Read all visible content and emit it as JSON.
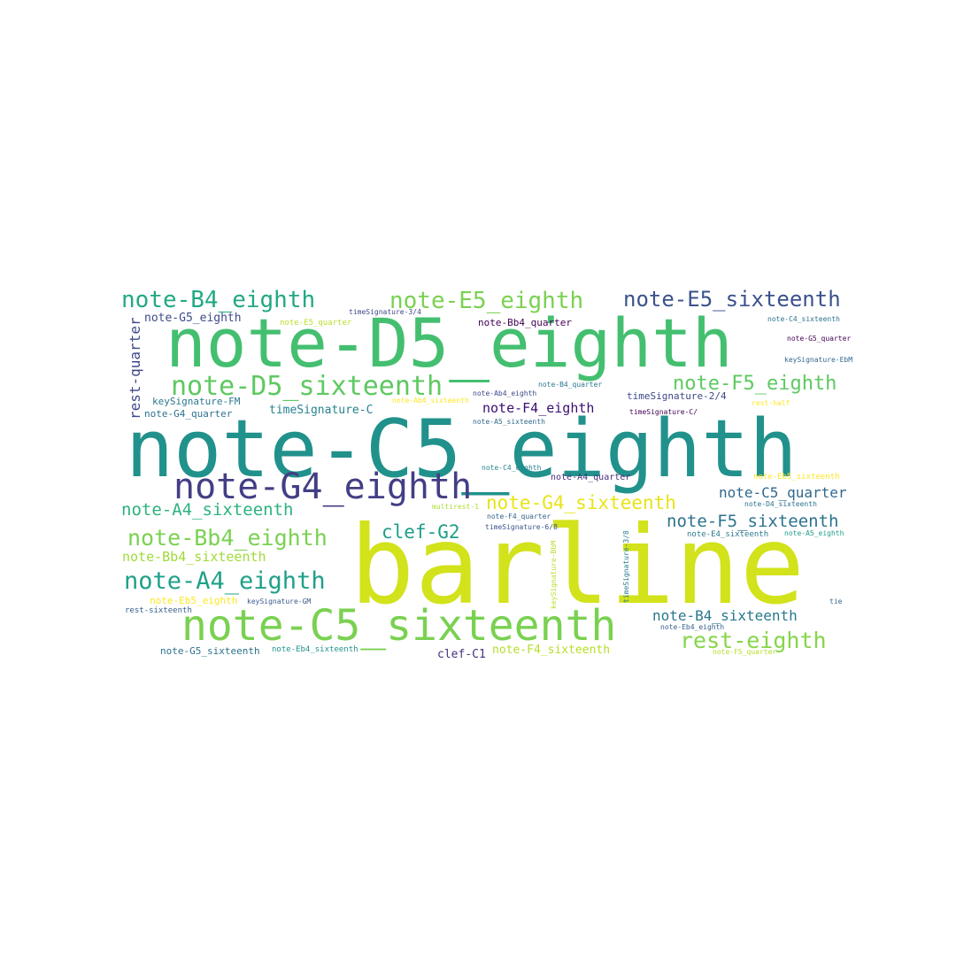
{
  "words": [
    {
      "text": "barline",
      "color": "#d2e21b"
    },
    {
      "text": "note-C5_eighth",
      "color": "#21918c"
    },
    {
      "text": "note-D5_eighth",
      "color": "#44bf70"
    },
    {
      "text": "note-C5_sixteenth",
      "color": "#7ad151"
    },
    {
      "text": "note-G4_eighth",
      "color": "#433e85"
    },
    {
      "text": "note-D5_sixteenth",
      "color": "#5ec962"
    },
    {
      "text": "note-B4_eighth",
      "color": "#22a884"
    },
    {
      "text": "note-E5_eighth",
      "color": "#7ad151"
    },
    {
      "text": "note-E5_sixteenth",
      "color": "#3b528b"
    },
    {
      "text": "note-A4_eighth",
      "color": "#1fa088"
    },
    {
      "text": "note-Bb4_eighth",
      "color": "#7ad151"
    },
    {
      "text": "note-F5_eighth",
      "color": "#5ec962"
    },
    {
      "text": "note-G4_sixteenth",
      "color": "#e8e419"
    },
    {
      "text": "rest-eighth",
      "color": "#86d549"
    },
    {
      "text": "note-A4_sixteenth",
      "color": "#2db27d"
    },
    {
      "text": "note-F5_sixteenth",
      "color": "#2c728e"
    },
    {
      "text": "clef-G2",
      "color": "#1f9e89"
    },
    {
      "text": "note-B4_sixteenth",
      "color": "#2a788e"
    },
    {
      "text": "note-C5_quarter",
      "color": "#31688e"
    },
    {
      "text": "note-Bb4_sixteenth",
      "color": "#9fda3a"
    },
    {
      "text": "rest-quarter",
      "color": "#3e4989"
    },
    {
      "text": "note-F4_eighth",
      "color": "#3b0f70"
    },
    {
      "text": "timeSignature-C",
      "color": "#26828e"
    },
    {
      "text": "note-F4_sixteenth",
      "color": "#b5de2b"
    },
    {
      "text": "note-G5_eighth",
      "color": "#3e4a89"
    },
    {
      "text": "keySignature-FM",
      "color": "#2a788e"
    },
    {
      "text": "note-G4_quarter",
      "color": "#2c728e"
    },
    {
      "text": "clef-C1",
      "color": "#46327e"
    },
    {
      "text": "note-G5_sixteenth",
      "color": "#2c728e"
    },
    {
      "text": "timeSignature-2/4",
      "color": "#3e4989"
    },
    {
      "text": "note-Bb4_quarter",
      "color": "#440154"
    },
    {
      "text": "note-A4_quarter",
      "color": "#472d7b"
    },
    {
      "text": "note-E4_sixteenth",
      "color": "#2a788e"
    },
    {
      "text": "note-Eb5_eighth",
      "color": "#fde725"
    },
    {
      "text": "rest-sixteenth",
      "color": "#355f8d"
    },
    {
      "text": "note-Eb4_sixteenth",
      "color": "#21918c"
    },
    {
      "text": "note-E5_quarter",
      "color": "#b8de29"
    },
    {
      "text": "timeSignature-3/4",
      "color": "#3f4889"
    },
    {
      "text": "note-Ab4_sixteenth",
      "color": "#fde725"
    },
    {
      "text": "note-Ab4_eighth",
      "color": "#3e4989"
    },
    {
      "text": "note-B4_quarter",
      "color": "#2a788e"
    },
    {
      "text": "note-A5_sixteenth",
      "color": "#31688e"
    },
    {
      "text": "timeSignature-C/",
      "color": "#440154"
    },
    {
      "text": "note-C4_eighth",
      "color": "#26828e"
    },
    {
      "text": "note-F4_quarter",
      "color": "#33638d"
    },
    {
      "text": "timeSignature-6/8",
      "color": "#3b528b"
    },
    {
      "text": "multirest-1",
      "color": "#addc30"
    },
    {
      "text": "keySignature-GM",
      "color": "#375a8c"
    },
    {
      "text": "keySignature-BbM",
      "color": "#b5de2b"
    },
    {
      "text": "timeSignature-3/8",
      "color": "#287c8e"
    },
    {
      "text": "note-C4_sixteenth",
      "color": "#2c728e"
    },
    {
      "text": "note-G5_quarter",
      "color": "#440154"
    },
    {
      "text": "keySignature-EbM",
      "color": "#31688e"
    },
    {
      "text": "rest-half",
      "color": "#fde725"
    },
    {
      "text": "note-Eb5_sixteenth",
      "color": "#fde725"
    },
    {
      "text": "note-D4_sixteenth",
      "color": "#2c728e"
    },
    {
      "text": "note-A5_eighth",
      "color": "#1f9e89"
    },
    {
      "text": "tie",
      "color": "#31688e"
    },
    {
      "text": "note-Eb4_eighth",
      "color": "#355f8d"
    },
    {
      "text": "note-F5_quarter",
      "color": "#b5de2b"
    }
  ]
}
